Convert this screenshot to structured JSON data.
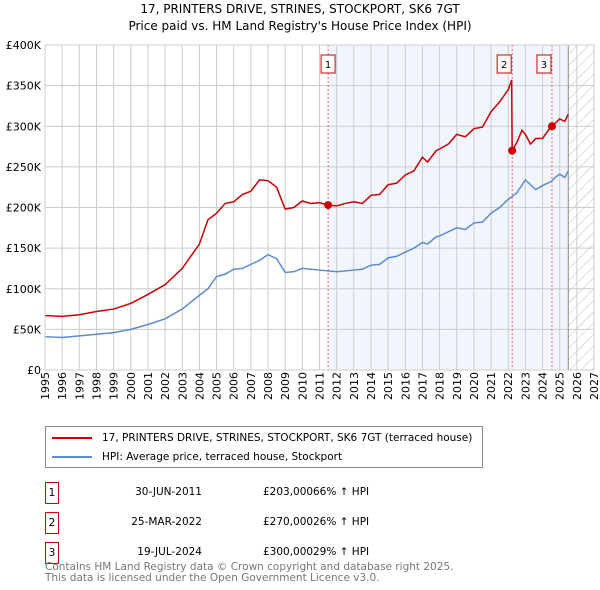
{
  "chart_data": {
    "type": "line",
    "title": "17, PRINTERS DRIVE, STRINES, STOCKPORT, SK6 7GT",
    "subtitle": "Price paid vs. HM Land Registry's House Price Index (HPI)",
    "xlim": [
      1995,
      2027
    ],
    "ylim": [
      0,
      400000
    ],
    "x_ticks": [
      "1995",
      "1996",
      "1997",
      "1998",
      "1999",
      "2000",
      "2001",
      "2002",
      "2003",
      "2004",
      "2005",
      "2006",
      "2007",
      "2008",
      "2009",
      "2010",
      "2011",
      "2012",
      "2013",
      "2014",
      "2015",
      "2016",
      "2017",
      "2018",
      "2019",
      "2020",
      "2021",
      "2022",
      "2023",
      "2024",
      "2025",
      "2026",
      "2027"
    ],
    "y_ticks": [
      {
        "v": 0,
        "l": "£0"
      },
      {
        "v": 50000,
        "l": "£50K"
      },
      {
        "v": 100000,
        "l": "£100K"
      },
      {
        "v": 150000,
        "l": "£150K"
      },
      {
        "v": 200000,
        "l": "£200K"
      },
      {
        "v": 250000,
        "l": "£250K"
      },
      {
        "v": 300000,
        "l": "£300K"
      },
      {
        "v": 350000,
        "l": "£350K"
      },
      {
        "v": 400000,
        "l": "£400K"
      }
    ],
    "grid": true,
    "shaded_range": [
      2011.5,
      2025.5
    ],
    "forecast_hatch_from": 2025.5,
    "series": [
      {
        "name": "17, PRINTERS DRIVE, STRINES, STOCKPORT, SK6 7GT (terraced house)",
        "color": "#cc0000",
        "x": [
          1995,
          1996,
          1997,
          1998,
          1999,
          2000,
          2001,
          2002,
          2003,
          2004,
          2004.5,
          2005,
          2005.5,
          2006,
          2006.5,
          2007,
          2007.5,
          2008,
          2008.5,
          2009,
          2009.5,
          2010,
          2010.5,
          2011,
          2011.5,
          2012,
          2012.5,
          2013,
          2013.5,
          2014,
          2014.5,
          2015,
          2015.5,
          2016,
          2016.5,
          2017,
          2017.3,
          2017.8,
          2018,
          2018.5,
          2019,
          2019.5,
          2020,
          2020.5,
          2021,
          2021.5,
          2022,
          2022.2,
          2022.23,
          2022.5,
          2022.8,
          2023,
          2023.3,
          2023.6,
          2024,
          2024.5,
          2024.8,
          2025,
          2025.3,
          2025.5
        ],
        "y": [
          67000,
          66000,
          68000,
          72000,
          75000,
          82000,
          93000,
          105000,
          125000,
          155000,
          185000,
          193000,
          205000,
          207000,
          216000,
          220000,
          234000,
          233000,
          225000,
          198000,
          200000,
          208000,
          205000,
          206000,
          203000,
          202000,
          205000,
          207000,
          205000,
          215000,
          216000,
          228000,
          230000,
          240000,
          245000,
          262000,
          256000,
          270000,
          272000,
          278000,
          290000,
          287000,
          297000,
          299000,
          318000,
          330000,
          345000,
          357000,
          270000,
          280000,
          295000,
          290000,
          278000,
          285000,
          285000,
          300000,
          305000,
          309000,
          306000,
          315000
        ]
      },
      {
        "name": "HPI: Average price, terraced house, Stockport",
        "color": "#5b8bd0",
        "x": [
          1995,
          1996,
          1997,
          1998,
          1999,
          2000,
          2001,
          2002,
          2003,
          2004,
          2004.5,
          2005,
          2005.5,
          2006,
          2006.5,
          2007,
          2007.5,
          2008,
          2008.5,
          2009,
          2009.5,
          2010,
          2011,
          2011.5,
          2012,
          2013,
          2013.5,
          2014,
          2014.5,
          2015,
          2015.5,
          2016,
          2016.5,
          2017,
          2017.3,
          2017.8,
          2018,
          2018.5,
          2019,
          2019.5,
          2020,
          2020.5,
          2021,
          2021.5,
          2022,
          2022.5,
          2023,
          2023.3,
          2023.6,
          2024,
          2024.5,
          2024.8,
          2025,
          2025.3,
          2025.5
        ],
        "y": [
          41000,
          40000,
          42000,
          44000,
          46000,
          50000,
          56000,
          63000,
          75000,
          92000,
          100000,
          115000,
          118000,
          124000,
          125000,
          130000,
          135000,
          142000,
          137000,
          120000,
          121000,
          125000,
          123000,
          122000,
          121000,
          123000,
          124000,
          129000,
          130000,
          138000,
          140000,
          145000,
          150000,
          157000,
          155000,
          164000,
          165000,
          170000,
          175000,
          173000,
          181000,
          182000,
          193000,
          200000,
          210000,
          218000,
          234000,
          228000,
          222000,
          227000,
          232000,
          238000,
          241000,
          237000,
          245000
        ]
      }
    ],
    "sales": [
      {
        "n": "1",
        "x": 2011.5,
        "y": 203000,
        "date": "30-JUN-2011",
        "price": "£203,000",
        "hpi": "66% ↑ HPI"
      },
      {
        "n": "2",
        "x": 2022.23,
        "y": 270000,
        "date": "25-MAR-2022",
        "price": "£270,000",
        "hpi": "26% ↑ HPI"
      },
      {
        "n": "3",
        "x": 2024.55,
        "y": 300000,
        "date": "19-JUL-2024",
        "price": "£300,000",
        "hpi": "29% ↑ HPI"
      }
    ]
  },
  "footer": [
    "Contains HM Land Registry data © Crown copyright and database right 2025.",
    "This data is licensed under the Open Government Licence v3.0."
  ]
}
